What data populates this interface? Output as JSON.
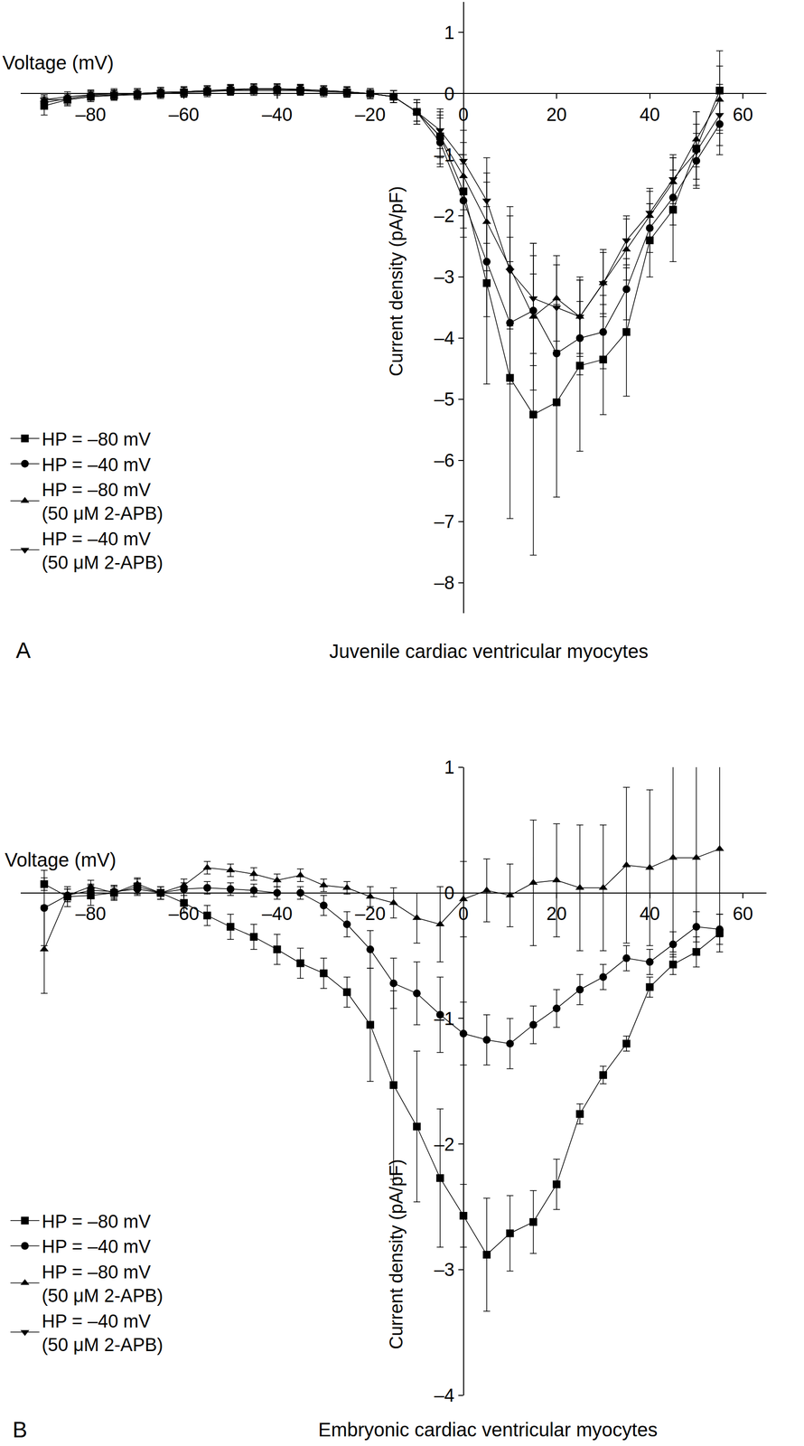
{
  "chart_data": [
    {
      "type": "line",
      "panel": "A",
      "caption": "Juvenile cardiac ventricular myocytes",
      "x_label": "Voltage (mV)",
      "y_label": "Current density (pA/pF)",
      "grid": false,
      "legend": "lower left",
      "xlim": [
        -95,
        65
      ],
      "xticks": [
        {
          "value": -80,
          "label": "–80"
        },
        {
          "value": -60,
          "label": "–60"
        },
        {
          "value": -40,
          "label": "–40"
        },
        {
          "value": -20,
          "label": "–20"
        },
        0,
        20,
        40,
        60
      ],
      "ylim": [
        -8.5,
        1.5
      ],
      "yticks": [
        1,
        0,
        {
          "value": -1,
          "label": "–1"
        },
        {
          "value": -2,
          "label": "–2"
        },
        {
          "value": -3,
          "label": "–3"
        },
        {
          "value": -4,
          "label": "–4"
        },
        {
          "value": -5,
          "label": "–5"
        },
        {
          "value": -6,
          "label": "–6"
        },
        {
          "value": -7,
          "label": "–7"
        },
        {
          "value": -8,
          "label": "–8"
        }
      ],
      "x": [
        -90,
        -85,
        -80,
        -75,
        -70,
        -65,
        -60,
        -55,
        -50,
        -45,
        -40,
        -35,
        -30,
        -25,
        -20,
        -15,
        -10,
        -5,
        0,
        5,
        10,
        15,
        20,
        25,
        30,
        35,
        40,
        45,
        50,
        55
      ],
      "series": [
        {
          "name": "HP = –80 mV",
          "color": "#000000",
          "marker": "square",
          "line_style": "solid",
          "values": [
            -0.2,
            -0.1,
            -0.05,
            -0.03,
            -0.02,
            0,
            0.02,
            0.03,
            0.05,
            0.05,
            0.05,
            0.05,
            0.03,
            0.02,
            0,
            -0.05,
            -0.3,
            -0.7,
            -1.6,
            -3.1,
            -4.65,
            -5.25,
            -5.05,
            -4.45,
            -4.35,
            -3.9,
            -2.4,
            -1.9,
            -0.9,
            0.05
          ],
          "errors": [
            0.15,
            0.1,
            0.08,
            0.08,
            0.08,
            0.08,
            0.08,
            0.08,
            0.08,
            0.08,
            0.08,
            0.08,
            0.08,
            0.08,
            0.08,
            0.1,
            0.2,
            0.45,
            0.6,
            1.65,
            2.3,
            2.3,
            1.55,
            1.4,
            0.9,
            1.05,
            0.6,
            0.85,
            0.6,
            0.65
          ]
        },
        {
          "name": "HP = –40 mV",
          "color": "#000000",
          "marker": "circle",
          "line_style": "solid",
          "values": [
            -0.15,
            -0.08,
            -0.03,
            -0.02,
            0,
            0.02,
            0.03,
            0.05,
            0.07,
            0.08,
            0.08,
            0.07,
            0.05,
            0.03,
            0,
            -0.05,
            -0.3,
            -0.8,
            -1.75,
            -2.75,
            -3.75,
            -3.55,
            -4.25,
            -4.0,
            -3.9,
            -3.2,
            -2.2,
            -1.7,
            -1.1,
            -0.5
          ],
          "errors": [
            0.1,
            0.08,
            0.08,
            0.08,
            0.08,
            0.08,
            0.08,
            0.08,
            0.08,
            0.08,
            0.08,
            0.08,
            0.08,
            0.08,
            0.08,
            0.1,
            0.2,
            0.4,
            0.6,
            0.9,
            1.0,
            0.9,
            0.8,
            0.6,
            0.6,
            0.5,
            0.4,
            0.45,
            0.45,
            0.5
          ]
        },
        {
          "name": "HP = –80 mV\n(50 μM 2-APB)",
          "color": "#000000",
          "marker": "triangle-up",
          "line_style": "solid",
          "values": [
            -0.1,
            -0.05,
            -0.02,
            0,
            0,
            0.02,
            0.03,
            0.05,
            0.06,
            0.08,
            0.08,
            0.07,
            0.05,
            0.03,
            0,
            -0.05,
            -0.3,
            -0.7,
            -1.35,
            -2.1,
            -2.85,
            -3.65,
            -3.35,
            -3.65,
            -3.1,
            -2.55,
            -2.0,
            -1.45,
            -0.75,
            -0.1
          ],
          "errors": [
            0.08,
            0.08,
            0.08,
            0.08,
            0.08,
            0.08,
            0.08,
            0.08,
            0.08,
            0.08,
            0.08,
            0.08,
            0.08,
            0.08,
            0.08,
            0.1,
            0.15,
            0.35,
            0.55,
            0.8,
            1.0,
            1.2,
            0.7,
            0.65,
            0.55,
            0.5,
            0.4,
            0.4,
            0.45,
            0.55
          ]
        },
        {
          "name": "HP = –40 mV\n(50 μM 2-APB)",
          "color": "#000000",
          "marker": "triangle-down",
          "line_style": "solid",
          "values": [
            -0.1,
            -0.1,
            -0.05,
            -0.03,
            0,
            0.02,
            0.03,
            0.05,
            0.06,
            0.07,
            0.07,
            0.06,
            0.05,
            0.03,
            0,
            -0.05,
            -0.3,
            -0.6,
            -1.1,
            -1.75,
            -2.9,
            -3.35,
            -3.5,
            -3.65,
            -3.1,
            -2.4,
            -1.95,
            -1.4,
            -0.95,
            -0.35
          ],
          "errors": [
            0.08,
            0.08,
            0.08,
            0.08,
            0.08,
            0.08,
            0.08,
            0.08,
            0.08,
            0.08,
            0.08,
            0.08,
            0.08,
            0.08,
            0.08,
            0.1,
            0.15,
            0.3,
            0.5,
            0.7,
            0.9,
            0.9,
            0.7,
            0.6,
            0.5,
            0.4,
            0.4,
            0.4,
            0.45,
            0.5
          ]
        }
      ]
    },
    {
      "type": "line",
      "panel": "B",
      "caption": "Embryonic cardiac ventricular myocytes",
      "x_label": "Voltage (mV)",
      "y_label": "Current density (pA/pF)",
      "grid": false,
      "legend": "lower left",
      "xlim": [
        -95,
        65
      ],
      "xticks": [
        {
          "value": -80,
          "label": "–80"
        },
        {
          "value": -60,
          "label": "–60"
        },
        {
          "value": -40,
          "label": "–40"
        },
        {
          "value": -20,
          "label": "–20"
        },
        0,
        20,
        40,
        60
      ],
      "ylim": [
        -4,
        1
      ],
      "yticks": [
        1,
        0,
        {
          "value": -1,
          "label": "–1"
        },
        {
          "value": -2,
          "label": "–2"
        },
        {
          "value": -3,
          "label": "–3"
        },
        {
          "value": -4,
          "label": "–4"
        }
      ],
      "x": [
        -90,
        -85,
        -80,
        -75,
        -70,
        -65,
        -60,
        -55,
        -50,
        -45,
        -40,
        -35,
        -30,
        -25,
        -20,
        -15,
        -10,
        -5,
        0,
        5,
        10,
        15,
        20,
        25,
        30,
        35,
        40,
        45,
        50,
        55
      ],
      "series": [
        {
          "name": "HP = –80 mV",
          "color": "#000000",
          "marker": "square",
          "line_style": "solid",
          "values": [
            0.07,
            -0.03,
            -0.02,
            0,
            0.05,
            0,
            -0.08,
            -0.18,
            -0.27,
            -0.35,
            -0.45,
            -0.56,
            -0.64,
            -0.79,
            -1.05,
            -1.53,
            -1.86,
            -2.27,
            -2.57,
            -2.88,
            -2.71,
            -2.62,
            -2.32,
            -1.76,
            -1.45,
            -1.2,
            -0.75,
            -0.57,
            -0.47,
            -0.32
          ],
          "errors": [
            0.05,
            0.08,
            0.08,
            0.06,
            0.06,
            0.05,
            0.08,
            0.08,
            0.1,
            0.1,
            0.12,
            0.12,
            0.12,
            0.12,
            0.45,
            0.75,
            0.6,
            0.55,
            0.25,
            0.45,
            0.3,
            0.25,
            0.2,
            0.08,
            0.07,
            0.06,
            0.08,
            0.08,
            0.12,
            0.15
          ]
        },
        {
          "name": "HP = –40 mV",
          "color": "#000000",
          "marker": "circle",
          "line_style": "solid",
          "values": [
            -0.12,
            -0.02,
            0.02,
            0.01,
            0.03,
            0,
            0.03,
            0.04,
            0.03,
            0.02,
            0,
            0,
            -0.1,
            -0.25,
            -0.45,
            -0.72,
            -0.8,
            -0.97,
            -1.12,
            -1.17,
            -1.2,
            -1.05,
            -0.92,
            -0.77,
            -0.67,
            -0.52,
            -0.55,
            -0.41,
            -0.27,
            -0.29
          ],
          "errors": [
            0.3,
            0.05,
            0.05,
            0.05,
            0.05,
            0.05,
            0.05,
            0.05,
            0.05,
            0.05,
            0.05,
            0.05,
            0.08,
            0.1,
            0.15,
            0.2,
            0.25,
            0.3,
            0.25,
            0.2,
            0.2,
            0.15,
            0.15,
            0.12,
            0.1,
            0.1,
            0.1,
            0.1,
            0.12,
            0.12
          ]
        },
        {
          "name": "HP = –80 mV\n(50 μM 2-APB)",
          "color": "#000000",
          "marker": "triangle-up",
          "line_style": "solid",
          "values": [
            -0.45,
            -0.02,
            0.05,
            0,
            0.07,
            0,
            0.06,
            0.2,
            0.18,
            0.15,
            0.1,
            0.14,
            0.06,
            0.04,
            -0.03,
            -0.08,
            -0.2,
            -0.25,
            -0.05,
            0.02,
            -0.02,
            0.08,
            0.1,
            0.04,
            0.04,
            0.22,
            0.2,
            0.28,
            0.28,
            0.35
          ],
          "errors": [
            0.35,
            0.05,
            0.05,
            0.05,
            0.05,
            0.05,
            0.05,
            0.05,
            0.05,
            0.05,
            0.05,
            0.05,
            0.05,
            0.05,
            0.08,
            0.12,
            0.2,
            0.3,
            0.3,
            0.25,
            0.25,
            0.5,
            0.45,
            0.5,
            0.5,
            0.62,
            0.62,
            0.75,
            0.75,
            0.7
          ]
        },
        {
          "name": "HP = –40 mV\n(50 μM 2-APB)",
          "color": "#000000",
          "marker": "triangle-down",
          "line_style": "solid",
          "values": [
            null,
            null,
            null,
            null,
            null,
            null,
            null,
            null,
            null,
            null,
            null,
            null,
            null,
            null,
            null,
            null,
            null,
            null,
            null,
            null,
            null,
            null,
            null,
            null,
            null,
            null,
            null,
            null,
            null,
            null
          ],
          "errors": [
            null,
            null,
            null,
            null,
            null,
            null,
            null,
            null,
            null,
            null,
            null,
            null,
            null,
            null,
            null,
            null,
            null,
            null,
            null,
            null,
            null,
            null,
            null,
            null,
            null,
            null,
            null,
            null,
            null,
            null
          ]
        }
      ]
    }
  ]
}
